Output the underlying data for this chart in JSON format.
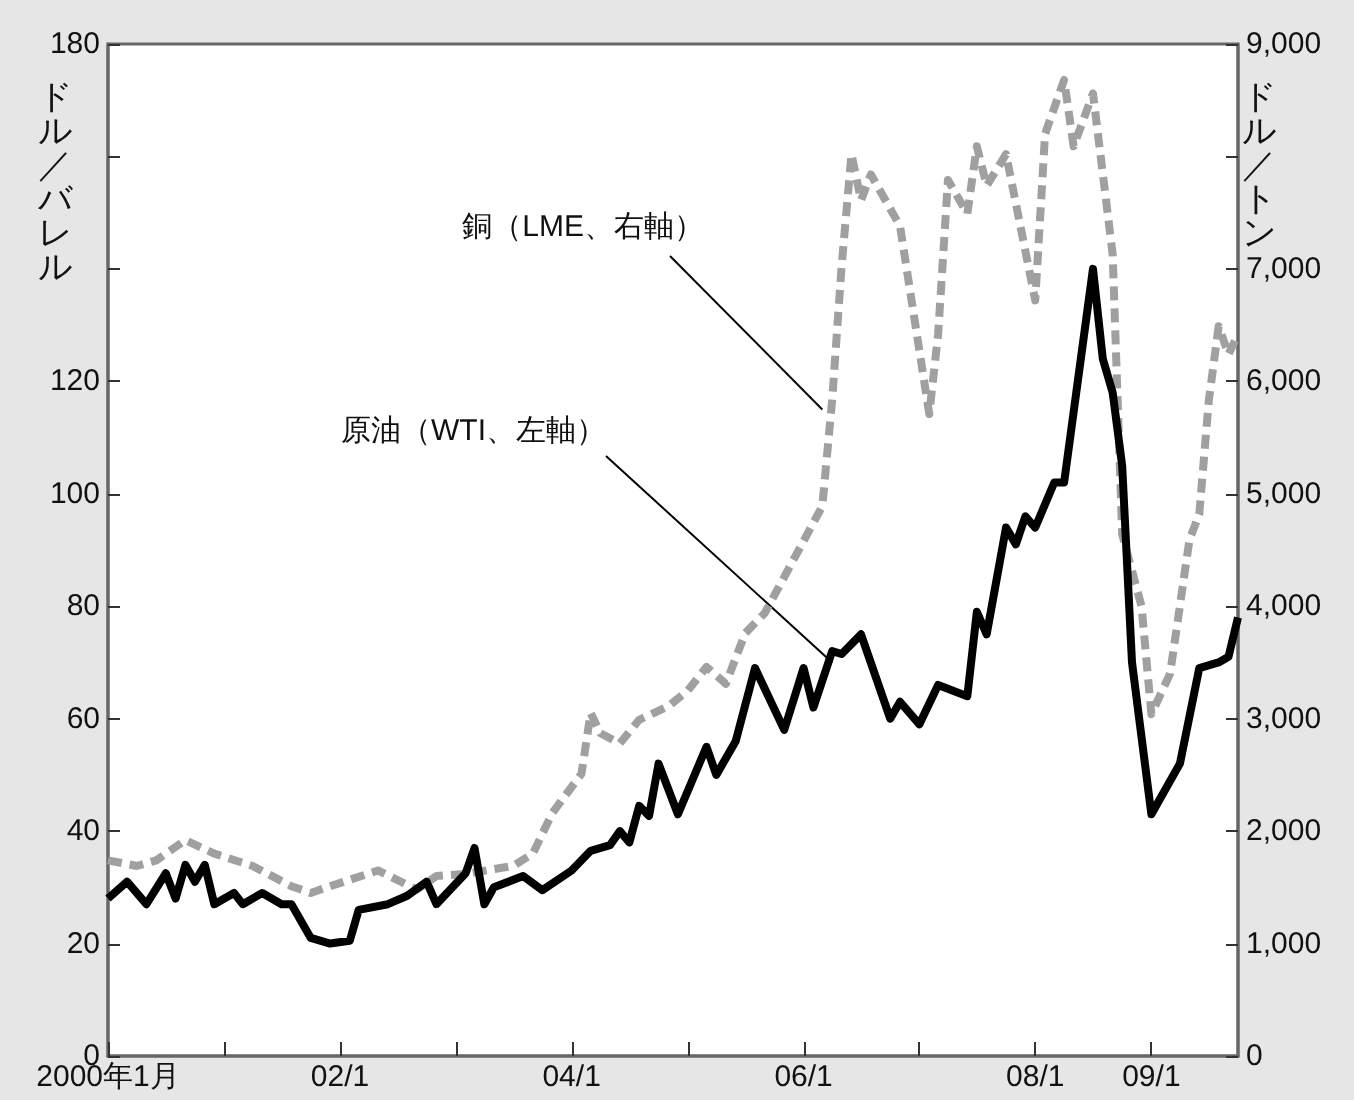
{
  "chart_data": {
    "type": "line",
    "ylabel": "ドル／バレル",
    "y2label": "ドル／トン",
    "annotations": [
      {
        "text": "銅（LME、右軸）",
        "x": "2006-03",
        "y": 115
      },
      {
        "text": "原油（WTI、左軸）",
        "x": "2006-04",
        "y": 70
      }
    ],
    "xlim": [
      "2000-01",
      "2009-10"
    ],
    "xticks": [
      {
        "value": "2000-01",
        "label": "2000年1月"
      },
      {
        "value": "2001-01",
        "label": null
      },
      {
        "value": "2002-01",
        "label": "02/1"
      },
      {
        "value": "2003-01",
        "label": null
      },
      {
        "value": "2004-01",
        "label": "04/1"
      },
      {
        "value": "2005-01",
        "label": null
      },
      {
        "value": "2006-01",
        "label": "06/1"
      },
      {
        "value": "2007-01",
        "label": null
      },
      {
        "value": "2008-01",
        "label": "08/1"
      },
      {
        "value": "2009-01",
        "label": "09/1"
      }
    ],
    "ylim": [
      0,
      180
    ],
    "yticks": [
      0,
      20,
      40,
      60,
      80,
      100,
      120,
      {
        "value": 140,
        "label": null
      },
      {
        "value": 160,
        "label": null
      },
      180
    ],
    "y2lim": [
      0,
      9000
    ],
    "y2ticks": [
      0,
      {
        "value": 1000,
        "label": "1,000"
      },
      {
        "value": 2000,
        "label": "2,000"
      },
      {
        "value": 3000,
        "label": "3,000"
      },
      {
        "value": 4000,
        "label": "4,000"
      },
      {
        "value": 5000,
        "label": "5,000"
      },
      {
        "value": 6000,
        "label": "6,000"
      },
      {
        "value": 7000,
        "label": "7,000"
      },
      {
        "value": 8000,
        "label": null
      },
      {
        "value": 9000,
        "label": "9,000"
      }
    ],
    "grid": false,
    "marker": "none",
    "series": [
      {
        "color": "#a0a0a0",
        "axis": "y2",
        "line_style": "dashed",
        "x": [
          "2000-01",
          "2000-04",
          "2000-06",
          "2000-09",
          "2000-12",
          "2001-04",
          "2001-08",
          "2001-10",
          "2001-12",
          "2002-05",
          "2002-09",
          "2002-11",
          "2003-02",
          "2003-07",
          "2003-09",
          "2003-11",
          "2004-02",
          "2004-03",
          "2004-04",
          "2004-06",
          "2004-08",
          "2004-11",
          "2005-01",
          "2005-03",
          "2005-05",
          "2005-07",
          "2005-09",
          "2006-03",
          "2006-04",
          "2006-05",
          "2006-06",
          "2006-07",
          "2006-08",
          "2006-11",
          "2007-02",
          "2007-03",
          "2007-04",
          "2007-06",
          "2007-07",
          "2007-08",
          "2007-10",
          "2008-01",
          "2008-02",
          "2008-04",
          "2008-05",
          "2008-07",
          "2008-09",
          "2008-10",
          "2008-12",
          "2009-01",
          "2009-03",
          "2009-05",
          "2009-06",
          "2009-07",
          "2009-08",
          "2009-09",
          "2009-10"
        ],
        "values": [
          1740,
          1690,
          1740,
          1920,
          1800,
          1690,
          1510,
          1450,
          1510,
          1650,
          1480,
          1600,
          1620,
          1690,
          1800,
          2160,
          2510,
          3050,
          2870,
          2780,
          2990,
          3110,
          3250,
          3460,
          3310,
          3760,
          3940,
          4890,
          5830,
          7030,
          8020,
          7610,
          7840,
          7380,
          5710,
          6420,
          7790,
          7490,
          8090,
          7740,
          8020,
          6720,
          8200,
          8680,
          8090,
          8560,
          7130,
          4640,
          4000,
          3040,
          3400,
          4590,
          4820,
          5830,
          6490,
          6240,
          6420
        ]
      },
      {
        "color": "#000000",
        "axis": "y",
        "line_style": "solid",
        "x": [
          "2000-01",
          "2000-03",
          "2000-05",
          "2000-07",
          "2000-08",
          "2000-09",
          "2000-10",
          "2000-11",
          "2000-12",
          "2001-02",
          "2001-03",
          "2001-05",
          "2001-07",
          "2001-08",
          "2001-10",
          "2001-12",
          "2002-02",
          "2002-03",
          "2002-06",
          "2002-08",
          "2002-10",
          "2002-11",
          "2003-02",
          "2003-03",
          "2003-04",
          "2003-05",
          "2003-08",
          "2003-10",
          "2004-01",
          "2004-03",
          "2004-05",
          "2004-06",
          "2004-07",
          "2004-08",
          "2004-09",
          "2004-10",
          "2004-12",
          "2005-03",
          "2005-04",
          "2005-06",
          "2005-08",
          "2005-11",
          "2006-01",
          "2006-02",
          "2006-04",
          "2006-05",
          "2006-07",
          "2006-10",
          "2006-11",
          "2007-01",
          "2007-03",
          "2007-06",
          "2007-07",
          "2007-08",
          "2007-10",
          "2007-11",
          "2007-12",
          "2008-01",
          "2008-03",
          "2008-04",
          "2008-07",
          "2008-08",
          "2008-09",
          "2008-10",
          "2008-11",
          "2009-01",
          "2009-04",
          "2009-06",
          "2009-08",
          "2009-09",
          "2009-10"
        ],
        "values": [
          28,
          31,
          27,
          32.5,
          28,
          34,
          31,
          34,
          27,
          29,
          27,
          29,
          27,
          27,
          21,
          20,
          20.5,
          26,
          27,
          28.5,
          31,
          27,
          32.5,
          37,
          27,
          30,
          32,
          29.5,
          33,
          36.5,
          37.5,
          40,
          38,
          44.5,
          42.7,
          52,
          43,
          55,
          50,
          56,
          69,
          58,
          69,
          62,
          72,
          71.5,
          75,
          60,
          63,
          59,
          66,
          64,
          79,
          75,
          94,
          91,
          96,
          94,
          102,
          102,
          140,
          124,
          118,
          105,
          70,
          43,
          52,
          69,
          70,
          71,
          78
        ]
      }
    ]
  }
}
